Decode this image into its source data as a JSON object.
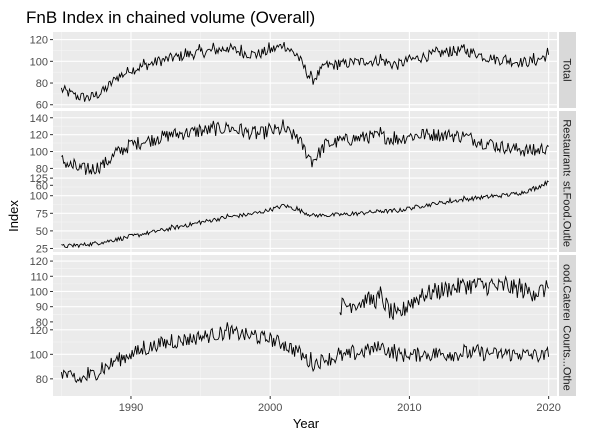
{
  "chart_data": {
    "type": "line",
    "title": "FnB Index in chained volume (Overall)",
    "xlabel": "Year",
    "ylabel": "Index",
    "xlim": [
      1984.4,
      2020.6
    ],
    "x_ticks": [
      1990,
      2000,
      2010,
      2020
    ],
    "grid": true,
    "legend": "none",
    "line_color": "#000000",
    "panel_color": "#ebebeb",
    "strip_color": "#d9d9d9",
    "series": [
      {
        "name": "Total",
        "strip_label": "Total",
        "ylim": [
          57,
          127
        ],
        "y_ticks": [
          60,
          80,
          100,
          120
        ],
        "points": [
          [
            1985,
            74
          ],
          [
            1986,
            68
          ],
          [
            1987,
            66
          ],
          [
            1988,
            72
          ],
          [
            1989,
            85
          ],
          [
            1990,
            92
          ],
          [
            1991,
            96
          ],
          [
            1992,
            100
          ],
          [
            1993,
            103
          ],
          [
            1994,
            106
          ],
          [
            1995,
            108
          ],
          [
            1996,
            110
          ],
          [
            1997,
            112
          ],
          [
            1998,
            108
          ],
          [
            1999,
            106
          ],
          [
            2000,
            110
          ],
          [
            2001,
            115
          ],
          [
            2002,
            104
          ],
          [
            2003,
            82
          ],
          [
            2004,
            96
          ],
          [
            2005,
            97
          ],
          [
            2006,
            99
          ],
          [
            2007,
            100
          ],
          [
            2008,
            101
          ],
          [
            2009,
            96
          ],
          [
            2010,
            101
          ],
          [
            2011,
            104
          ],
          [
            2012,
            107
          ],
          [
            2013,
            109
          ],
          [
            2014,
            110
          ],
          [
            2015,
            106
          ],
          [
            2016,
            102
          ],
          [
            2017,
            101
          ],
          [
            2018,
            99
          ],
          [
            2019,
            100
          ],
          [
            2020,
            106
          ]
        ],
        "noise": 5
      },
      {
        "name": "Restaurants",
        "strip_label": "Restaurants",
        "ylim": [
          58,
          148
        ],
        "y_ticks": [
          60,
          80,
          100,
          120,
          140
        ],
        "points": [
          [
            1985,
            90
          ],
          [
            1986,
            80
          ],
          [
            1987,
            78
          ],
          [
            1988,
            84
          ],
          [
            1989,
            98
          ],
          [
            1990,
            108
          ],
          [
            1991,
            112
          ],
          [
            1992,
            116
          ],
          [
            1993,
            120
          ],
          [
            1994,
            122
          ],
          [
            1995,
            124
          ],
          [
            1996,
            126
          ],
          [
            1997,
            128
          ],
          [
            1998,
            124
          ],
          [
            1999,
            120
          ],
          [
            2000,
            124
          ],
          [
            2001,
            126
          ],
          [
            2002,
            115
          ],
          [
            2003,
            88
          ],
          [
            2004,
            108
          ],
          [
            2005,
            112
          ],
          [
            2006,
            115
          ],
          [
            2007,
            117
          ],
          [
            2008,
            118
          ],
          [
            2009,
            114
          ],
          [
            2010,
            118
          ],
          [
            2011,
            120
          ],
          [
            2012,
            120
          ],
          [
            2013,
            119
          ],
          [
            2014,
            118
          ],
          [
            2015,
            112
          ],
          [
            2016,
            108
          ],
          [
            2017,
            104
          ],
          [
            2018,
            102
          ],
          [
            2019,
            100
          ],
          [
            2020,
            106
          ]
        ],
        "noise": 8
      },
      {
        "name": "Fast Food Outlets",
        "strip_label": "st.Food.Outle",
        "ylim": [
          20,
          128
        ],
        "y_ticks": [
          25,
          50,
          75,
          100,
          125
        ],
        "points": [
          [
            1985,
            28
          ],
          [
            1986,
            29
          ],
          [
            1987,
            31
          ],
          [
            1988,
            34
          ],
          [
            1989,
            38
          ],
          [
            1990,
            42
          ],
          [
            1991,
            46
          ],
          [
            1992,
            50
          ],
          [
            1993,
            54
          ],
          [
            1994,
            58
          ],
          [
            1995,
            62
          ],
          [
            1996,
            66
          ],
          [
            1997,
            70
          ],
          [
            1998,
            72
          ],
          [
            1999,
            75
          ],
          [
            2000,
            80
          ],
          [
            2001,
            86
          ],
          [
            2002,
            80
          ],
          [
            2003,
            72
          ],
          [
            2004,
            72
          ],
          [
            2005,
            73
          ],
          [
            2006,
            74
          ],
          [
            2007,
            76
          ],
          [
            2008,
            78
          ],
          [
            2009,
            78
          ],
          [
            2010,
            82
          ],
          [
            2011,
            86
          ],
          [
            2012,
            89
          ],
          [
            2013,
            92
          ],
          [
            2014,
            95
          ],
          [
            2015,
            97
          ],
          [
            2016,
            99
          ],
          [
            2017,
            101
          ],
          [
            2018,
            104
          ],
          [
            2019,
            110
          ],
          [
            2020,
            120
          ]
        ],
        "noise": 3
      },
      {
        "name": "Food Caterers",
        "strip_label": "ood.Caterer",
        "ylim": [
          74,
          124
        ],
        "y_ticks": [
          80,
          90,
          100,
          110,
          120
        ],
        "points": [
          [
            2005,
            90
          ],
          [
            2006,
            92
          ],
          [
            2007,
            94
          ],
          [
            2008,
            95
          ],
          [
            2009,
            82
          ],
          [
            2010,
            92
          ],
          [
            2011,
            98
          ],
          [
            2012,
            100
          ],
          [
            2013,
            102
          ],
          [
            2014,
            104
          ],
          [
            2015,
            104
          ],
          [
            2016,
            103
          ],
          [
            2017,
            103
          ],
          [
            2018,
            101
          ],
          [
            2019,
            99
          ],
          [
            2020,
            102
          ]
        ],
        "noise": 6
      },
      {
        "name": "Food Courts, Coffee Shops & Others",
        "strip_label": "Courts...Othe",
        "ylim": [
          66,
          128
        ],
        "y_ticks": [
          80,
          100,
          120
        ],
        "points": [
          [
            1985,
            86
          ],
          [
            1986,
            78
          ],
          [
            1987,
            82
          ],
          [
            1988,
            88
          ],
          [
            1989,
            95
          ],
          [
            1990,
            100
          ],
          [
            1991,
            104
          ],
          [
            1992,
            108
          ],
          [
            1993,
            110
          ],
          [
            1994,
            112
          ],
          [
            1995,
            114
          ],
          [
            1996,
            116
          ],
          [
            1997,
            118
          ],
          [
            1998,
            116
          ],
          [
            1999,
            114
          ],
          [
            2000,
            112
          ],
          [
            2001,
            108
          ],
          [
            2002,
            102
          ],
          [
            2003,
            92
          ],
          [
            2004,
            96
          ],
          [
            2005,
            98
          ],
          [
            2006,
            100
          ],
          [
            2007,
            103
          ],
          [
            2008,
            106
          ],
          [
            2009,
            100
          ],
          [
            2010,
            99
          ],
          [
            2011,
            100
          ],
          [
            2012,
            100
          ],
          [
            2013,
            100
          ],
          [
            2014,
            101
          ],
          [
            2015,
            101
          ],
          [
            2016,
            100
          ],
          [
            2017,
            100
          ],
          [
            2018,
            100
          ],
          [
            2019,
            99
          ],
          [
            2020,
            98
          ]
        ],
        "noise": 6
      }
    ]
  }
}
